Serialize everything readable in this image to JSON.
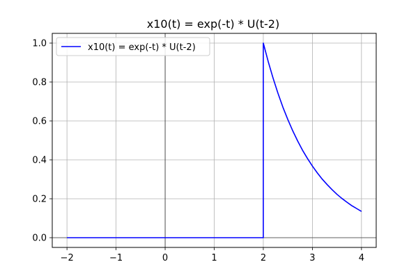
{
  "chart_data": {
    "type": "line",
    "title": "x10(t) = exp(-t) * U(t-2)",
    "xlabel": "",
    "ylabel": "",
    "xlim": [
      -2.3,
      4.3
    ],
    "ylim": [
      -0.05,
      1.05
    ],
    "grid": true,
    "legend_placement": "top-left",
    "x_ticks": [
      -2,
      -1,
      0,
      1,
      2,
      3,
      4
    ],
    "x_tick_labels": [
      "−2",
      "−1",
      "0",
      "1",
      "2",
      "3",
      "4"
    ],
    "y_ticks": [
      0.0,
      0.2,
      0.4,
      0.6,
      0.8,
      1.0
    ],
    "y_tick_labels": [
      "0.0",
      "0.2",
      "0.4",
      "0.6",
      "0.8",
      "1.0"
    ],
    "reference_lines": {
      "x": 0,
      "y": 0,
      "color": "#000000"
    },
    "series": [
      {
        "name": "x10(t) = exp(-t) * U(t-2)",
        "color": "#0000ff",
        "x": [
          -2,
          2.0,
          2.0,
          2.1,
          2.2,
          2.3,
          2.4,
          2.5,
          2.6,
          2.7,
          2.8,
          2.9,
          3.0,
          3.1,
          3.2,
          3.3,
          3.4,
          3.5,
          3.6,
          3.7,
          3.8,
          3.9,
          4.0
        ],
        "y": [
          0,
          0,
          1.0,
          0.905,
          0.819,
          0.741,
          0.67,
          0.607,
          0.549,
          0.497,
          0.449,
          0.407,
          0.368,
          0.333,
          0.301,
          0.273,
          0.247,
          0.223,
          0.202,
          0.183,
          0.165,
          0.15,
          0.135
        ]
      }
    ]
  }
}
